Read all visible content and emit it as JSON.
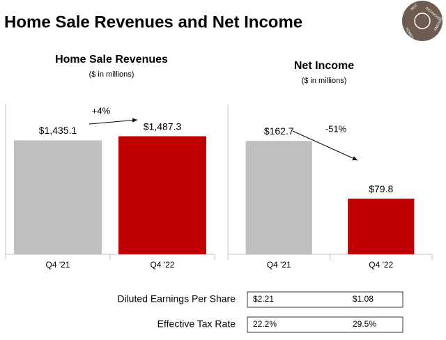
{
  "title": "Home Sale Revenues and Net Income",
  "logo": [
    "MDC",
    "RICHMOND",
    "AMERICAN",
    "HOMES"
  ],
  "chart_data": [
    {
      "type": "bar",
      "title": "Home Sale Revenues",
      "subtitle": "($ in millions)",
      "categories": [
        "Q4 '21",
        "Q4 '22"
      ],
      "values": [
        1435.1,
        1487.3
      ],
      "value_labels": [
        "$1,435.1",
        "$1,487.3"
      ],
      "colors": [
        "#bfbfbf",
        "#c00000"
      ],
      "annotation": "+4%",
      "ylim": [
        0,
        1580
      ]
    },
    {
      "type": "bar",
      "title": "Net Income",
      "subtitle": "($ in millions)",
      "categories": [
        "Q4 '21",
        "Q4 '22"
      ],
      "values": [
        162.7,
        79.8
      ],
      "value_labels": [
        "$162.7",
        "$79.8"
      ],
      "colors": [
        "#bfbfbf",
        "#c00000"
      ],
      "annotation": "-51%",
      "ylim": [
        0,
        180
      ]
    }
  ],
  "table": {
    "rows": [
      [
        "Diluted Earnings Per Share",
        "$2.21",
        "$1.08"
      ],
      [
        "Effective Tax Rate",
        "22.2%",
        "29.5%"
      ]
    ]
  }
}
